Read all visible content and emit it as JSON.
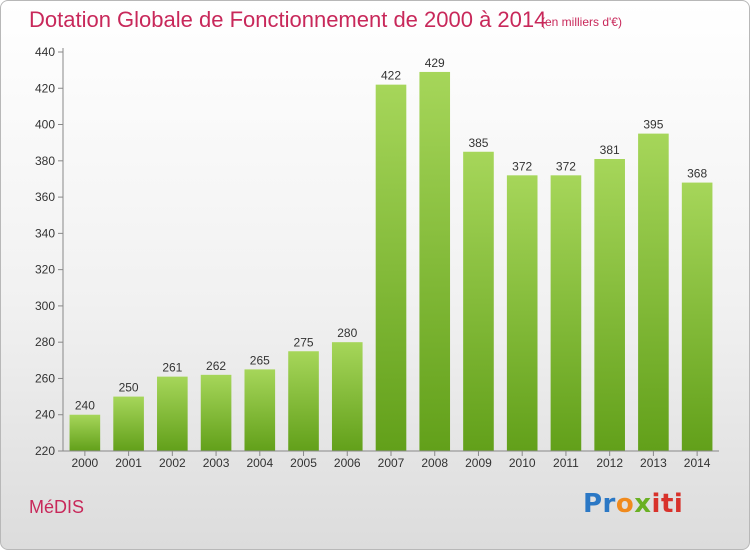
{
  "chart_data": {
    "type": "bar",
    "title": "Dotation Globale de Fonctionnement de 2000 à 2014",
    "subtitle": "(en milliers d'€)",
    "categories": [
      "2000",
      "2001",
      "2002",
      "2003",
      "2004",
      "2005",
      "2006",
      "2007",
      "2008",
      "2009",
      "2010",
      "2011",
      "2012",
      "2013",
      "2014"
    ],
    "values": [
      240,
      250,
      261,
      262,
      265,
      275,
      280,
      422,
      429,
      385,
      372,
      372,
      381,
      395,
      368
    ],
    "ylim": [
      220,
      440
    ],
    "yticks": [
      220,
      240,
      260,
      280,
      300,
      320,
      340,
      360,
      380,
      400,
      420,
      440
    ],
    "xlabel": "",
    "ylabel": "",
    "grid": false,
    "bar_color": "#7fba2e",
    "data_labels": true
  },
  "footer": {
    "commune": "MéDIS",
    "logo_parts": [
      "Pr",
      "o",
      "x",
      "iti"
    ]
  },
  "colors": {
    "title": "#c8285a",
    "bar_top": "#a6d65a",
    "bar_bottom": "#62a01a"
  }
}
